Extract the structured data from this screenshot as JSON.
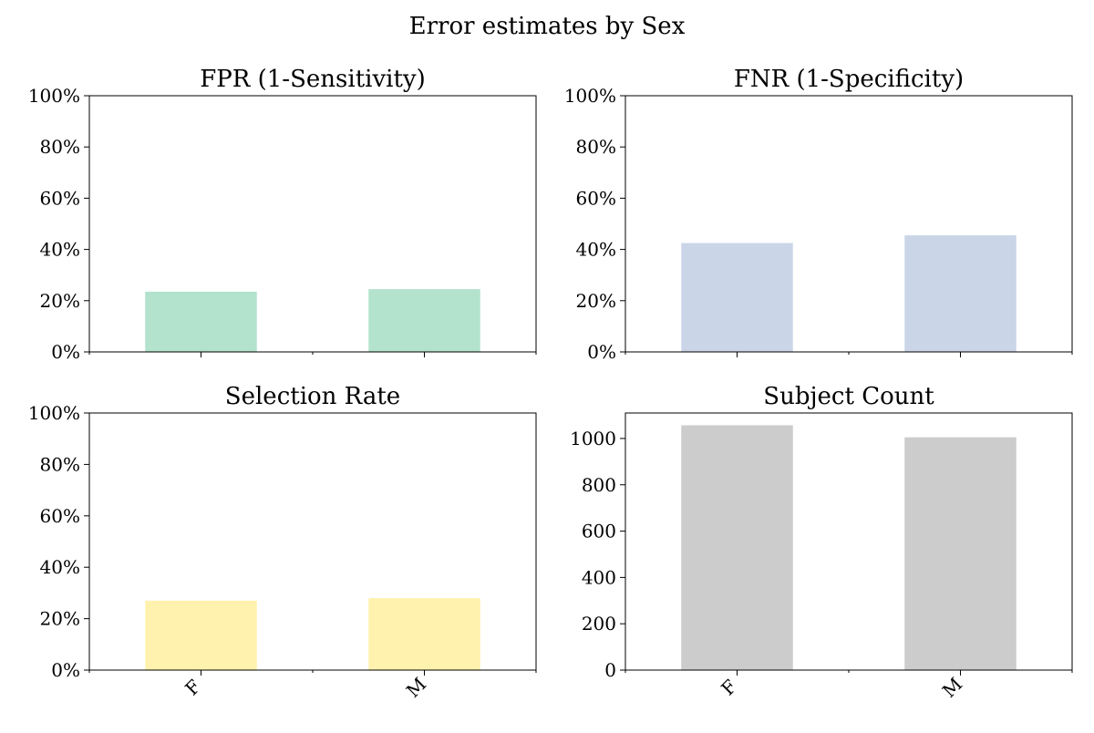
{
  "figure": {
    "title": "Error estimates by Sex"
  },
  "chart_data": [
    {
      "type": "bar",
      "title": "FPR (1-Sensitivity)",
      "categories": [
        "F",
        "M"
      ],
      "values": [
        0.235,
        0.245
      ],
      "ylim": [
        0,
        1
      ],
      "yticks": [
        0,
        0.2,
        0.4,
        0.6,
        0.8,
        1.0
      ],
      "yticklabels": [
        "0%",
        "20%",
        "40%",
        "60%",
        "80%",
        "100%"
      ],
      "show_xticklabels": false,
      "color": "#b3e2cd",
      "xlabel": "",
      "ylabel": "",
      "grid": false
    },
    {
      "type": "bar",
      "title": "FNR (1-Specificity)",
      "categories": [
        "F",
        "M"
      ],
      "values": [
        0.425,
        0.455
      ],
      "ylim": [
        0,
        1
      ],
      "yticks": [
        0,
        0.2,
        0.4,
        0.6,
        0.8,
        1.0
      ],
      "yticklabels": [
        "0%",
        "20%",
        "40%",
        "60%",
        "80%",
        "100%"
      ],
      "show_xticklabels": false,
      "color": "#cbd5e8",
      "xlabel": "",
      "ylabel": "",
      "grid": false
    },
    {
      "type": "bar",
      "title": "Selection Rate",
      "categories": [
        "F",
        "M"
      ],
      "values": [
        0.27,
        0.28
      ],
      "ylim": [
        0,
        1
      ],
      "yticks": [
        0,
        0.2,
        0.4,
        0.6,
        0.8,
        1.0
      ],
      "yticklabels": [
        "0%",
        "20%",
        "40%",
        "60%",
        "80%",
        "100%"
      ],
      "show_xticklabels": true,
      "color": "#fff2ae",
      "xlabel": "",
      "ylabel": "",
      "grid": false
    },
    {
      "type": "bar",
      "title": "Subject Count",
      "categories": [
        "F",
        "M"
      ],
      "values": [
        1057,
        1005
      ],
      "ylim": [
        0,
        1110
      ],
      "yticks": [
        0,
        200,
        400,
        600,
        800,
        1000
      ],
      "yticklabels": [
        "0",
        "200",
        "400",
        "600",
        "800",
        "1000"
      ],
      "show_xticklabels": true,
      "color": "#cccccc",
      "xlabel": "",
      "ylabel": "",
      "grid": false
    }
  ]
}
